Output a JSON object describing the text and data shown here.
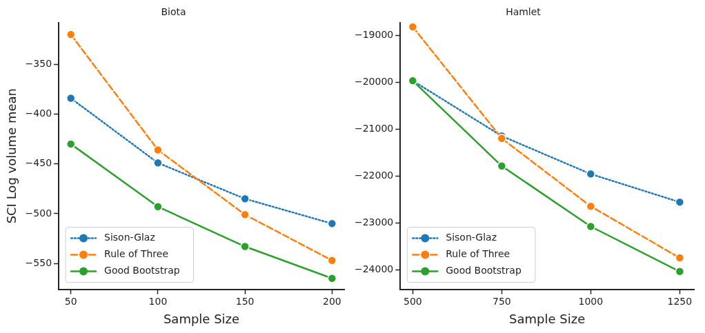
{
  "chart_data": [
    {
      "type": "line",
      "title": "Biota",
      "xlabel": "Sample Size",
      "ylabel": "SCI Log volume mean",
      "x": [
        50,
        100,
        150,
        200
      ],
      "xlim": [
        43,
        207
      ],
      "xticks": [
        50,
        100,
        150,
        200
      ],
      "ylim": [
        -576,
        -308
      ],
      "yticks": [
        -350,
        -400,
        -450,
        -500,
        -550
      ],
      "grid": false,
      "legend": "bottom left",
      "marker": "circle",
      "series": [
        {
          "name": "Sison-Glaz",
          "color": "#1f77b4",
          "line_style": "dotted",
          "values": [
            -384,
            -449,
            -485,
            -510
          ]
        },
        {
          "name": "Rule of Three",
          "color": "#ff7f0e",
          "line_style": "dashed",
          "values": [
            -320,
            -436,
            -501,
            -547
          ]
        },
        {
          "name": "Good Bootstrap",
          "color": "#2ca02c",
          "line_style": "solid",
          "values": [
            -430,
            -493,
            -533,
            -565
          ]
        }
      ]
    },
    {
      "type": "line",
      "title": "Hamlet",
      "xlabel": "Sample Size",
      "x": [
        500,
        750,
        1000,
        1250
      ],
      "xlim": [
        465,
        1290
      ],
      "xticks": [
        500,
        750,
        1000,
        1250
      ],
      "ylim": [
        -24410,
        -18720
      ],
      "yticks": [
        -19000,
        -20000,
        -21000,
        -22000,
        -23000,
        -24000
      ],
      "grid": false,
      "legend": "bottom left",
      "marker": "circle",
      "series": [
        {
          "name": "Sison-Glaz",
          "color": "#1f77b4",
          "line_style": "dotted",
          "values": [
            -19960,
            -21140,
            -21950,
            -22550
          ]
        },
        {
          "name": "Rule of Three",
          "color": "#ff7f0e",
          "line_style": "dashed",
          "values": [
            -18810,
            -21190,
            -22640,
            -23740
          ]
        },
        {
          "name": "Good Bootstrap",
          "color": "#2ca02c",
          "line_style": "solid",
          "values": [
            -19960,
            -21780,
            -23070,
            -24030
          ]
        }
      ]
    }
  ]
}
